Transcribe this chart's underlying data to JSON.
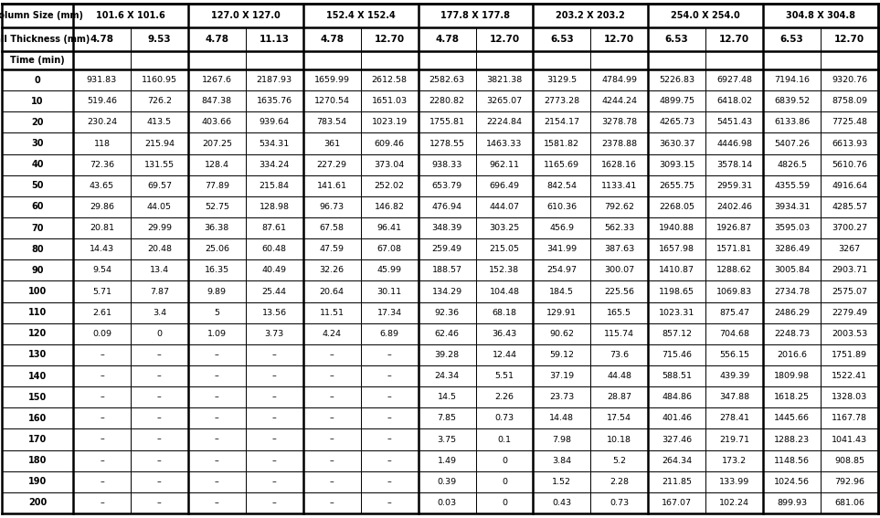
{
  "col_size_headers": [
    "101.6 X 101.6",
    "127.0 X 127.0",
    "152.4 X 152.4",
    "177.8 X 177.8",
    "203.2 X 203.2",
    "254.0 X 254.0",
    "304.8 X 304.8"
  ],
  "wall_thickness": [
    "4.78",
    "9.53",
    "4.78",
    "11.13",
    "4.78",
    "12.70",
    "4.78",
    "12.70",
    "6.53",
    "12.70",
    "6.53",
    "12.70",
    "6.53",
    "12.70"
  ],
  "time_rows": [
    "0",
    "10",
    "20",
    "30",
    "40",
    "50",
    "60",
    "70",
    "80",
    "90",
    "100",
    "110",
    "120",
    "130",
    "140",
    "150",
    "160",
    "170",
    "180",
    "190",
    "200"
  ],
  "table_data": [
    [
      "931.83",
      "1160.95",
      "1267.6",
      "2187.93",
      "1659.99",
      "2612.58",
      "2582.63",
      "3821.38",
      "3129.5",
      "4784.99",
      "5226.83",
      "6927.48",
      "7194.16",
      "9320.76"
    ],
    [
      "519.46",
      "726.2",
      "847.38",
      "1635.76",
      "1270.54",
      "1651.03",
      "2280.82",
      "3265.07",
      "2773.28",
      "4244.24",
      "4899.75",
      "6418.02",
      "6839.52",
      "8758.09"
    ],
    [
      "230.24",
      "413.5",
      "403.66",
      "939.64",
      "783.54",
      "1023.19",
      "1755.81",
      "2224.84",
      "2154.17",
      "3278.78",
      "4265.73",
      "5451.43",
      "6133.86",
      "7725.48"
    ],
    [
      "118",
      "215.94",
      "207.25",
      "534.31",
      "361",
      "609.46",
      "1278.55",
      "1463.33",
      "1581.82",
      "2378.88",
      "3630.37",
      "4446.98",
      "5407.26",
      "6613.93"
    ],
    [
      "72.36",
      "131.55",
      "128.4",
      "334.24",
      "227.29",
      "373.04",
      "938.33",
      "962.11",
      "1165.69",
      "1628.16",
      "3093.15",
      "3578.14",
      "4826.5",
      "5610.76"
    ],
    [
      "43.65",
      "69.57",
      "77.89",
      "215.84",
      "141.61",
      "252.02",
      "653.79",
      "696.49",
      "842.54",
      "1133.41",
      "2655.75",
      "2959.31",
      "4355.59",
      "4916.64"
    ],
    [
      "29.86",
      "44.05",
      "52.75",
      "128.98",
      "96.73",
      "146.82",
      "476.94",
      "444.07",
      "610.36",
      "792.62",
      "2268.05",
      "2402.46",
      "3934.31",
      "4285.57"
    ],
    [
      "20.81",
      "29.99",
      "36.38",
      "87.61",
      "67.58",
      "96.41",
      "348.39",
      "303.25",
      "456.9",
      "562.33",
      "1940.88",
      "1926.87",
      "3595.03",
      "3700.27"
    ],
    [
      "14.43",
      "20.48",
      "25.06",
      "60.48",
      "47.59",
      "67.08",
      "259.49",
      "215.05",
      "341.99",
      "387.63",
      "1657.98",
      "1571.81",
      "3286.49",
      "3267"
    ],
    [
      "9.54",
      "13.4",
      "16.35",
      "40.49",
      "32.26",
      "45.99",
      "188.57",
      "152.38",
      "254.97",
      "300.07",
      "1410.87",
      "1288.62",
      "3005.84",
      "2903.71"
    ],
    [
      "5.71",
      "7.87",
      "9.89",
      "25.44",
      "20.64",
      "30.11",
      "134.29",
      "104.48",
      "184.5",
      "225.56",
      "1198.65",
      "1069.83",
      "2734.78",
      "2575.07"
    ],
    [
      "2.61",
      "3.4",
      "5",
      "13.56",
      "11.51",
      "17.34",
      "92.36",
      "68.18",
      "129.91",
      "165.5",
      "1023.31",
      "875.47",
      "2486.29",
      "2279.49"
    ],
    [
      "0.09",
      "0",
      "1.09",
      "3.73",
      "4.24",
      "6.89",
      "62.46",
      "36.43",
      "90.62",
      "115.74",
      "857.12",
      "704.68",
      "2248.73",
      "2003.53"
    ],
    [
      "–",
      "–",
      "–",
      "–",
      "–",
      "–",
      "39.28",
      "12.44",
      "59.12",
      "73.6",
      "715.46",
      "556.15",
      "2016.6",
      "1751.89"
    ],
    [
      "–",
      "–",
      "–",
      "–",
      "–",
      "–",
      "24.34",
      "5.51",
      "37.19",
      "44.48",
      "588.51",
      "439.39",
      "1809.98",
      "1522.41"
    ],
    [
      "–",
      "–",
      "–",
      "–",
      "–",
      "–",
      "14.5",
      "2.26",
      "23.73",
      "28.87",
      "484.86",
      "347.88",
      "1618.25",
      "1328.03"
    ],
    [
      "–",
      "–",
      "–",
      "–",
      "–",
      "–",
      "7.85",
      "0.73",
      "14.48",
      "17.54",
      "401.46",
      "278.41",
      "1445.66",
      "1167.78"
    ],
    [
      "–",
      "–",
      "–",
      "–",
      "–",
      "–",
      "3.75",
      "0.1",
      "7.98",
      "10.18",
      "327.46",
      "219.71",
      "1288.23",
      "1041.43"
    ],
    [
      "–",
      "–",
      "–",
      "–",
      "–",
      "–",
      "1.49",
      "0",
      "3.84",
      "5.2",
      "264.34",
      "173.2",
      "1148.56",
      "908.85"
    ],
    [
      "–",
      "–",
      "–",
      "–",
      "–",
      "–",
      "0.39",
      "0",
      "1.52",
      "2.28",
      "211.85",
      "133.99",
      "1024.56",
      "792.96"
    ],
    [
      "–",
      "–",
      "–",
      "–",
      "–",
      "–",
      "0.03",
      "0",
      "0.43",
      "0.73",
      "167.07",
      "102.24",
      "899.93",
      "681.06"
    ]
  ],
  "bg_color": "#ffffff",
  "text_color": "#000000",
  "font_size_header": 7.0,
  "font_size_wall": 7.5,
  "font_size_data": 6.8,
  "font_size_time_label": 7.0,
  "font_size_time_vals": 7.0
}
